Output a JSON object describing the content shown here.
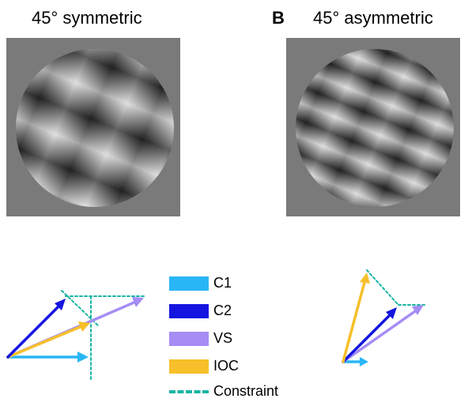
{
  "panels": [
    {
      "letter": "",
      "title": "45° symmetric"
    },
    {
      "letter": "B",
      "title": "45° asymmetric"
    }
  ],
  "legend": [
    {
      "label": "C1",
      "color": "#29b6f6",
      "style": "solid"
    },
    {
      "label": "C2",
      "color": "#1515e0",
      "style": "solid"
    },
    {
      "label": "VS",
      "color": "#a68cf5",
      "style": "solid"
    },
    {
      "label": "IOC",
      "color": "#f7c02a",
      "style": "solid"
    },
    {
      "label": "Constraint",
      "color": "#19b5a3",
      "style": "dashed"
    }
  ],
  "colors": {
    "background_gray": "#7a7a7a",
    "constraint": "#19b5a3"
  }
}
